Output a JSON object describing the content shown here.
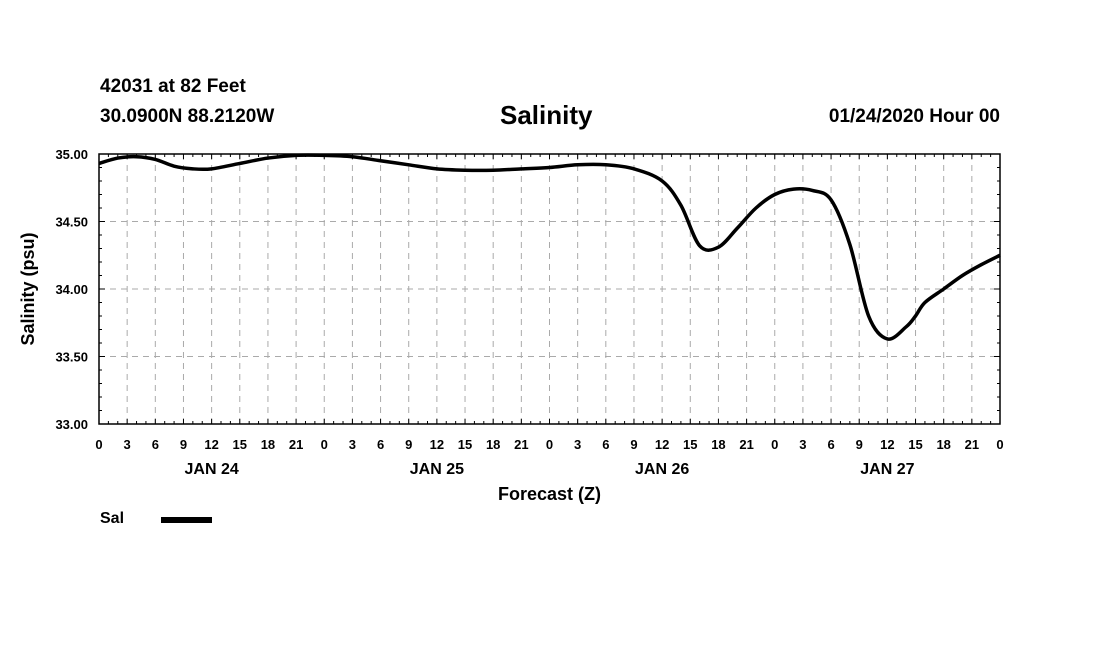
{
  "header": {
    "station": "42031 at 82 Feet",
    "coords": "30.0900N 88.2120W",
    "title": "Salinity",
    "datetime": "01/24/2020 Hour 00"
  },
  "legend": {
    "label": "Sal",
    "color": "#000000"
  },
  "chart_data": {
    "type": "line",
    "title": "Salinity",
    "xlabel": "Forecast (Z)",
    "ylabel": "Salinity (psu)",
    "ylim": [
      33.0,
      35.0
    ],
    "yticks": [
      "33.00",
      "33.50",
      "34.00",
      "34.50",
      "35.00"
    ],
    "xticks": [
      "0",
      "3",
      "6",
      "9",
      "12",
      "15",
      "18",
      "21",
      "0",
      "3",
      "6",
      "9",
      "12",
      "15",
      "18",
      "21",
      "0",
      "3",
      "6",
      "9",
      "12",
      "15",
      "18",
      "21",
      "0",
      "3",
      "6",
      "9",
      "12",
      "15",
      "18",
      "21",
      "0"
    ],
    "day_labels": [
      {
        "label": "JAN 24",
        "hour": 12
      },
      {
        "label": "JAN 25",
        "hour": 36
      },
      {
        "label": "JAN 26",
        "hour": 60
      },
      {
        "label": "JAN 27",
        "hour": 84
      }
    ],
    "grid": true,
    "series": [
      {
        "name": "Sal",
        "x": [
          0,
          2,
          4,
          6,
          8,
          10,
          12,
          15,
          18,
          21,
          24,
          27,
          30,
          33,
          36,
          39,
          42,
          45,
          48,
          51,
          54,
          57,
          60,
          62,
          64,
          66,
          68,
          70,
          72,
          74,
          76,
          78,
          80,
          82,
          84,
          86,
          87,
          88,
          90,
          92,
          94,
          96
        ],
        "y": [
          34.93,
          34.97,
          34.98,
          34.96,
          34.91,
          34.89,
          34.89,
          34.93,
          34.97,
          34.99,
          34.99,
          34.98,
          34.95,
          34.92,
          34.89,
          34.88,
          34.88,
          34.89,
          34.9,
          34.92,
          34.92,
          34.89,
          34.8,
          34.62,
          34.32,
          34.31,
          34.45,
          34.6,
          34.7,
          34.74,
          34.73,
          34.66,
          34.33,
          33.8,
          33.63,
          33.72,
          33.8,
          33.9,
          34.0,
          34.1,
          34.18,
          34.25
        ]
      }
    ]
  }
}
